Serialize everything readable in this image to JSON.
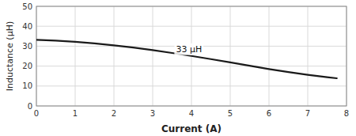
{
  "chart_data": {
    "type": "line",
    "xlabel": "Current (A)",
    "ylabel": "Inductance (μH)",
    "x": [
      0.0,
      0.5,
      1.0,
      1.5,
      2.0,
      2.5,
      3.0,
      3.5,
      4.0,
      4.5,
      5.0,
      5.5,
      6.0,
      6.5,
      7.0,
      7.5,
      7.75
    ],
    "values": [
      33.2,
      32.8,
      32.2,
      31.4,
      30.4,
      29.3,
      28.0,
      26.6,
      25.1,
      23.5,
      21.9,
      20.2,
      18.5,
      17.0,
      15.6,
      14.4,
      13.9
    ],
    "color": "#1a1a1a",
    "xlim": [
      0,
      8
    ],
    "ylim": [
      0,
      50
    ],
    "xticks": [
      0,
      1,
      2,
      3,
      4,
      5,
      6,
      7,
      8
    ],
    "yticks": [
      0,
      10,
      20,
      30,
      40,
      50
    ],
    "grid": true,
    "annotations": [
      {
        "text": "33 μH",
        "x": 3.6,
        "y": 28.5
      }
    ]
  }
}
